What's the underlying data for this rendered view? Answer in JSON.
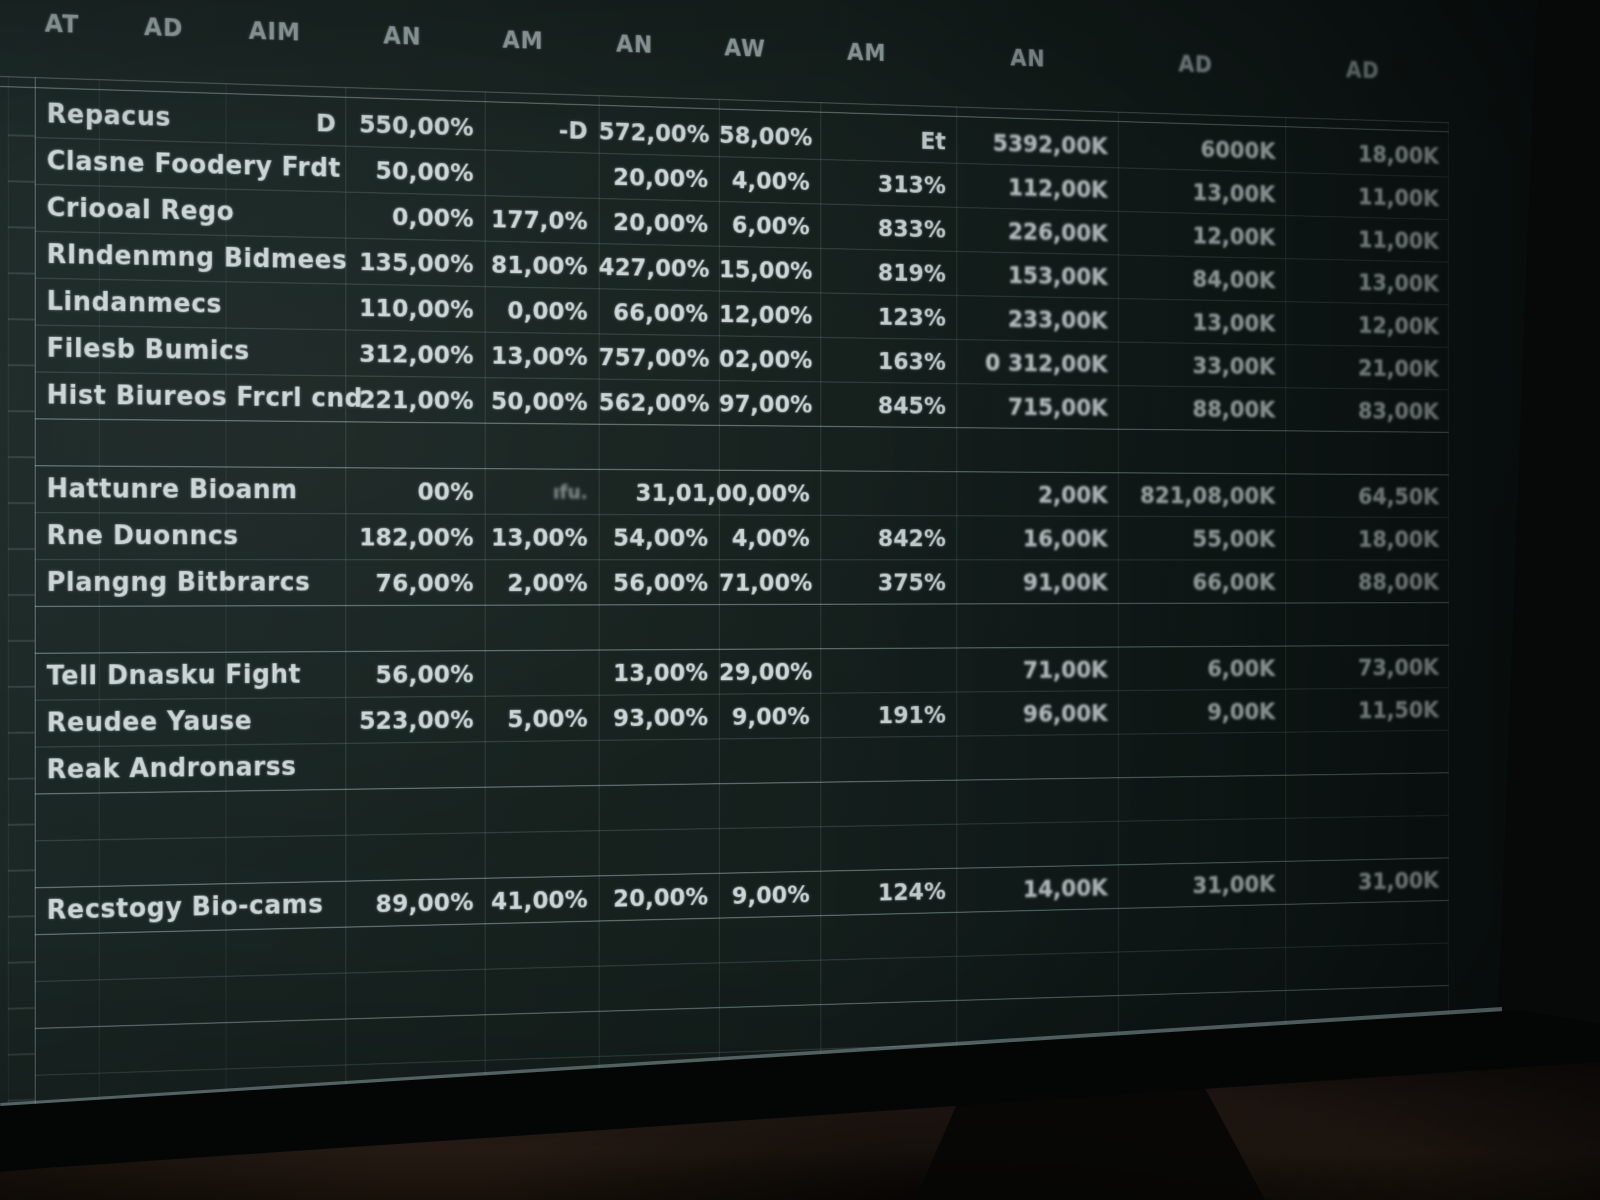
{
  "table": {
    "column_headers": [
      "AT",
      "AD",
      "AIM",
      "AN",
      "AM",
      "AN",
      "AW",
      "AM",
      "AN",
      "AD",
      "AD"
    ],
    "rows": [
      {
        "label": "Repacus",
        "flag": "D",
        "v1": "550,00%",
        "v2": "-D",
        "v3": "572,00%",
        "v4": "58,00%",
        "v5": "Et",
        "v6": "5392,00K",
        "v7": "6000K",
        "v8": "18,00K"
      },
      {
        "label": "Clasne Foodery Frdt",
        "v1": "50,00%",
        "v3": "20,00%",
        "v4": "4,00%",
        "v5": "313%",
        "v6": "112,00K",
        "v7": "13,00K",
        "v8": "11,00K"
      },
      {
        "label": "Criooal Rego",
        "v1": "0,00%",
        "v2": "177,0%",
        "v3": "20,00%",
        "v4": "6,00%",
        "v5": "833%",
        "v6": "226,00K",
        "v7": "12,00K",
        "v8": "11,00K"
      },
      {
        "label": "RIndenmng Bidmees",
        "v1": "135,00%",
        "v2": "81,00%",
        "v3": "427,00%",
        "v4": "15,00%",
        "v5": "819%",
        "v6": "153,00K",
        "v7": "84,00K",
        "v8": "13,00K"
      },
      {
        "label": "Lindanmecs",
        "v1": "110,00%",
        "v2": "0,00%",
        "v3": "66,00%",
        "v4": "12,00%",
        "v5": "123%",
        "v6": "233,00K",
        "v7": "13,00K",
        "v8": "12,00K"
      },
      {
        "label": "Filesb Bumics",
        "v1": "312,00%",
        "v2": "13,00%",
        "v3": "757,00%",
        "v4": "02,00%",
        "v5": "163%",
        "v6": "0 312,00K",
        "v7": "33,00K",
        "v8": "21,00K"
      },
      {
        "label": "Hist Biureos Frcrl cnd",
        "v1": "221,00%",
        "v2": "50,00%",
        "v3": "562,00%",
        "v4": "97,00%",
        "v5": "845%",
        "v6": "715,00K",
        "v7": "88,00K",
        "v8": "83,00K",
        "sep": true
      },
      {
        "label": "",
        "sep": true
      },
      {
        "label": "Hattunre Bioanm",
        "v1": "00%",
        "v2": "ıfu.",
        "v2_smudge": true,
        "v3": "31,01,00,00%",
        "span34": true,
        "v6": "2,00K",
        "v7": "821,08,00K",
        "v8": "64,50K"
      },
      {
        "label": "Rne Duonncs",
        "v1": "182,00%",
        "v2": "13,00%",
        "v3": "54,00%",
        "v4": "4,00%",
        "v5": "842%",
        "v6": "16,00K",
        "v7": "55,00K",
        "v8": "18,00K"
      },
      {
        "label": "Plangng Bitbrarcs",
        "v1": "76,00%",
        "v2": "2,00%",
        "v3": "56,00%",
        "v4": "71,00%",
        "v5": "375%",
        "v6": "91,00K",
        "v7": "66,00K",
        "v8": "88,00K",
        "sep": true
      },
      {
        "label": "",
        "sep": true
      },
      {
        "label": "Tell Dnasku Fight",
        "v1": "56,00%",
        "v3": "13,00%",
        "v4": "29,00%",
        "v6": "71,00K",
        "v7": "6,00K",
        "v8": "73,00K"
      },
      {
        "label": "Reudee Yause",
        "v1": "523,00%",
        "v2": "5,00%",
        "v3": "93,00%",
        "v4": "9,00%",
        "v5": "191%",
        "v6": "96,00K",
        "v7": "9,00K",
        "v8": "11,50K"
      },
      {
        "label": "Reak Andronarss",
        "sep": true
      },
      {
        "label": ""
      },
      {
        "label": "",
        "sep": true
      },
      {
        "label": "Recstogy Bio-cams",
        "v1": "89,00%",
        "v2": "41,00%",
        "v3": "20,00%",
        "v4": "9,00%",
        "v5": "124%",
        "v6": "14,00K",
        "v7": "31,00K",
        "v8": "31,00K",
        "sep": true
      },
      {
        "label": ""
      },
      {
        "label": "",
        "sep": true
      },
      {
        "label": ""
      },
      {
        "label": ""
      }
    ]
  },
  "colors": {
    "screen_background": "#17221f",
    "grid_line": "#7f9a9a",
    "cell_text": "#ccd6d6",
    "header_text": "#9aa7a7",
    "desk": "#221a13",
    "bezel": "#040606"
  }
}
